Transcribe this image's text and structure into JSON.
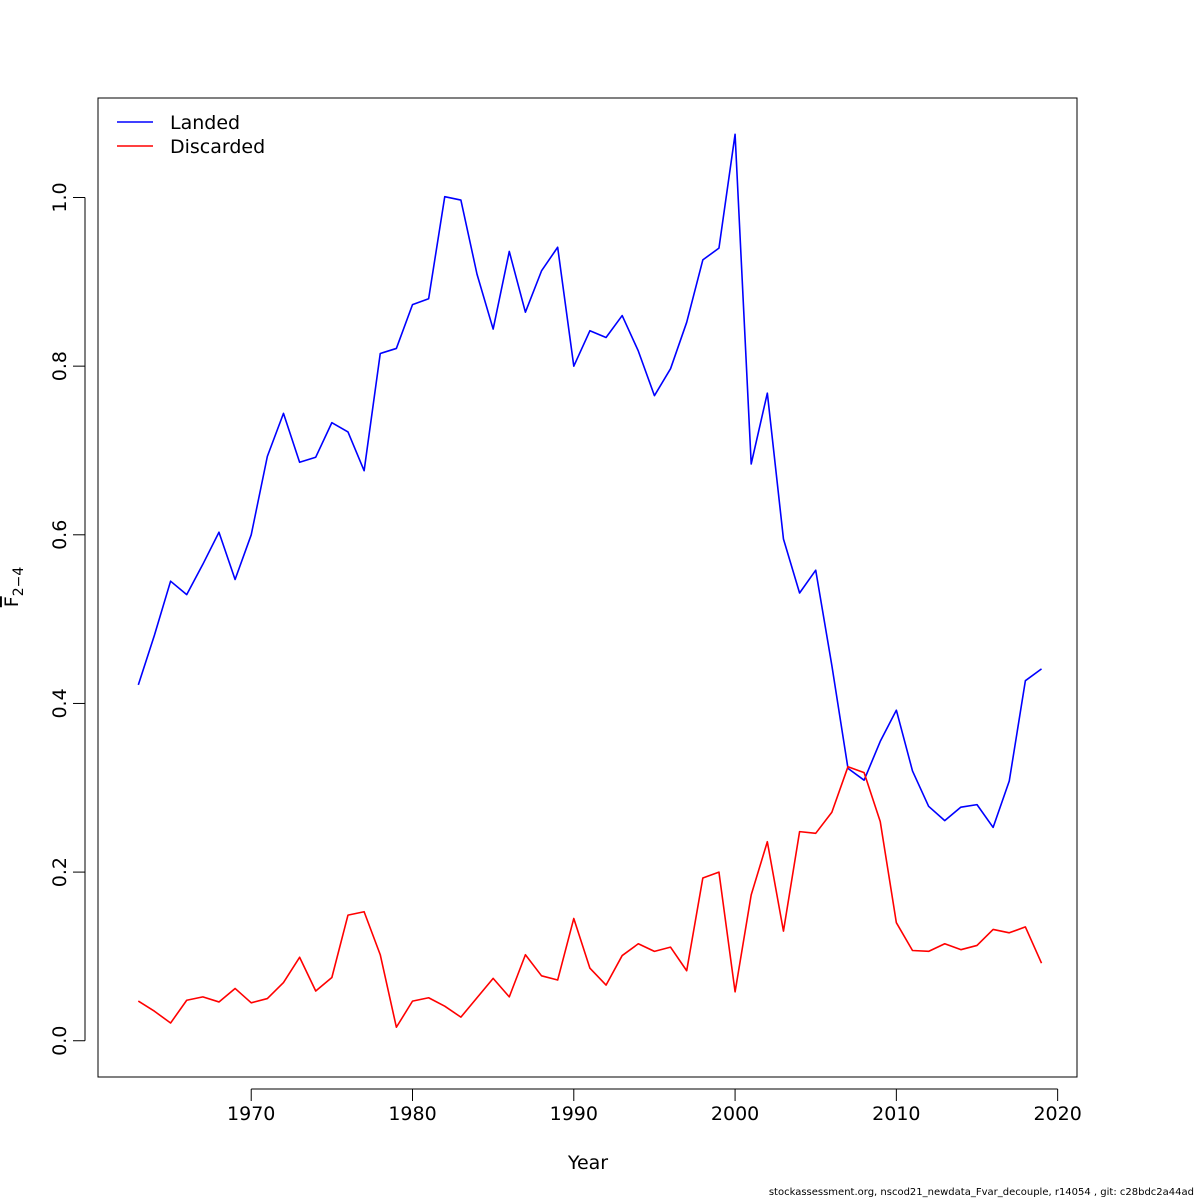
{
  "chart_data": {
    "type": "line",
    "title": "",
    "xlabel": "Year",
    "ylabel": "F̄ 2−4",
    "ylabel_main": "F",
    "ylabel_sub": "2−4",
    "xlim": [
      1960.5,
      2021.2
    ],
    "ylim": [
      -0.043,
      1.118
    ],
    "xticks": [
      1970,
      1980,
      1990,
      2000,
      2010,
      2020
    ],
    "yticks": [
      0.0,
      0.2,
      0.4,
      0.6,
      0.8,
      1.0
    ],
    "ytick_labels": [
      "0.0",
      "0.2",
      "0.4",
      "0.6",
      "0.8",
      "1.0"
    ],
    "legend_position": "top-left",
    "grid": false,
    "x": [
      1963,
      1964,
      1965,
      1966,
      1967,
      1968,
      1969,
      1970,
      1971,
      1972,
      1973,
      1974,
      1975,
      1976,
      1977,
      1978,
      1979,
      1980,
      1981,
      1982,
      1983,
      1984,
      1985,
      1986,
      1987,
      1988,
      1989,
      1990,
      1991,
      1992,
      1993,
      1994,
      1995,
      1996,
      1997,
      1998,
      1999,
      2000,
      2001,
      2002,
      2003,
      2004,
      2005,
      2006,
      2007,
      2008,
      2009,
      2010,
      2011,
      2012,
      2013,
      2014,
      2015,
      2016,
      2017,
      2018,
      2019
    ],
    "series": [
      {
        "name": "Landed",
        "color": "#0000ff",
        "values": [
          0.422,
          0.481,
          0.545,
          0.529,
          0.565,
          0.603,
          0.547,
          0.6,
          0.693,
          0.744,
          0.686,
          0.692,
          0.733,
          0.722,
          0.676,
          0.815,
          0.821,
          0.873,
          0.88,
          1.001,
          0.997,
          0.909,
          0.844,
          0.936,
          0.864,
          0.913,
          0.941,
          0.8,
          0.842,
          0.834,
          0.86,
          0.818,
          0.765,
          0.797,
          0.852,
          0.926,
          0.94,
          1.075,
          0.684,
          0.768,
          0.595,
          0.531,
          0.558,
          0.445,
          0.323,
          0.309,
          0.355,
          0.392,
          0.32,
          0.278,
          0.261,
          0.277,
          0.28,
          0.253,
          0.308,
          0.427,
          0.441
        ]
      },
      {
        "name": "Discarded",
        "color": "#ff0000",
        "values": [
          0.047,
          0.035,
          0.021,
          0.048,
          0.052,
          0.046,
          0.062,
          0.045,
          0.05,
          0.069,
          0.099,
          0.059,
          0.075,
          0.149,
          0.153,
          0.102,
          0.016,
          0.047,
          0.051,
          0.041,
          0.028,
          0.051,
          0.074,
          0.052,
          0.102,
          0.077,
          0.072,
          0.145,
          0.086,
          0.066,
          0.101,
          0.115,
          0.106,
          0.111,
          0.083,
          0.193,
          0.2,
          0.058,
          0.173,
          0.236,
          0.13,
          0.248,
          0.246,
          0.271,
          0.325,
          0.318,
          0.26,
          0.14,
          0.107,
          0.106,
          0.115,
          0.108,
          0.113,
          0.132,
          0.128,
          0.135,
          0.092
        ]
      }
    ]
  },
  "footer": "stockassessment.org, nscod21_newdata_Fvar_decouple, r14054 , git: c28bdc2a44ad"
}
